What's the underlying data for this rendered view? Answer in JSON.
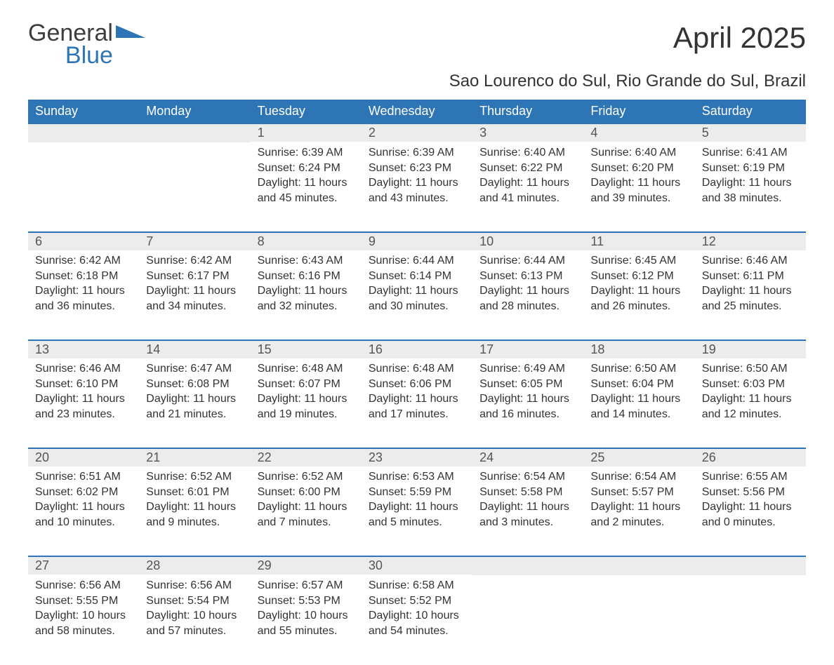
{
  "logo": {
    "general": "General",
    "blue": "Blue",
    "shape_color": "#2e75b6"
  },
  "title": "April 2025",
  "subtitle": "Sao Lourenco do Sul, Rio Grande do Sul, Brazil",
  "colors": {
    "header_bg": "#2e75b6",
    "header_text": "#ffffff",
    "daynum_bg": "#ececec",
    "border_top": "#2e75b6",
    "text": "#333333"
  },
  "typography": {
    "title_fontsize": 42,
    "subtitle_fontsize": 24,
    "header_fontsize": 18,
    "daynum_fontsize": 18,
    "body_fontsize": 16
  },
  "day_headers": [
    "Sunday",
    "Monday",
    "Tuesday",
    "Wednesday",
    "Thursday",
    "Friday",
    "Saturday"
  ],
  "weeks": [
    [
      null,
      null,
      {
        "n": "1",
        "sunrise": "Sunrise: 6:39 AM",
        "sunset": "Sunset: 6:24 PM",
        "daylight": "Daylight: 11 hours and 45 minutes."
      },
      {
        "n": "2",
        "sunrise": "Sunrise: 6:39 AM",
        "sunset": "Sunset: 6:23 PM",
        "daylight": "Daylight: 11 hours and 43 minutes."
      },
      {
        "n": "3",
        "sunrise": "Sunrise: 6:40 AM",
        "sunset": "Sunset: 6:22 PM",
        "daylight": "Daylight: 11 hours and 41 minutes."
      },
      {
        "n": "4",
        "sunrise": "Sunrise: 6:40 AM",
        "sunset": "Sunset: 6:20 PM",
        "daylight": "Daylight: 11 hours and 39 minutes."
      },
      {
        "n": "5",
        "sunrise": "Sunrise: 6:41 AM",
        "sunset": "Sunset: 6:19 PM",
        "daylight": "Daylight: 11 hours and 38 minutes."
      }
    ],
    [
      {
        "n": "6",
        "sunrise": "Sunrise: 6:42 AM",
        "sunset": "Sunset: 6:18 PM",
        "daylight": "Daylight: 11 hours and 36 minutes."
      },
      {
        "n": "7",
        "sunrise": "Sunrise: 6:42 AM",
        "sunset": "Sunset: 6:17 PM",
        "daylight": "Daylight: 11 hours and 34 minutes."
      },
      {
        "n": "8",
        "sunrise": "Sunrise: 6:43 AM",
        "sunset": "Sunset: 6:16 PM",
        "daylight": "Daylight: 11 hours and 32 minutes."
      },
      {
        "n": "9",
        "sunrise": "Sunrise: 6:44 AM",
        "sunset": "Sunset: 6:14 PM",
        "daylight": "Daylight: 11 hours and 30 minutes."
      },
      {
        "n": "10",
        "sunrise": "Sunrise: 6:44 AM",
        "sunset": "Sunset: 6:13 PM",
        "daylight": "Daylight: 11 hours and 28 minutes."
      },
      {
        "n": "11",
        "sunrise": "Sunrise: 6:45 AM",
        "sunset": "Sunset: 6:12 PM",
        "daylight": "Daylight: 11 hours and 26 minutes."
      },
      {
        "n": "12",
        "sunrise": "Sunrise: 6:46 AM",
        "sunset": "Sunset: 6:11 PM",
        "daylight": "Daylight: 11 hours and 25 minutes."
      }
    ],
    [
      {
        "n": "13",
        "sunrise": "Sunrise: 6:46 AM",
        "sunset": "Sunset: 6:10 PM",
        "daylight": "Daylight: 11 hours and 23 minutes."
      },
      {
        "n": "14",
        "sunrise": "Sunrise: 6:47 AM",
        "sunset": "Sunset: 6:08 PM",
        "daylight": "Daylight: 11 hours and 21 minutes."
      },
      {
        "n": "15",
        "sunrise": "Sunrise: 6:48 AM",
        "sunset": "Sunset: 6:07 PM",
        "daylight": "Daylight: 11 hours and 19 minutes."
      },
      {
        "n": "16",
        "sunrise": "Sunrise: 6:48 AM",
        "sunset": "Sunset: 6:06 PM",
        "daylight": "Daylight: 11 hours and 17 minutes."
      },
      {
        "n": "17",
        "sunrise": "Sunrise: 6:49 AM",
        "sunset": "Sunset: 6:05 PM",
        "daylight": "Daylight: 11 hours and 16 minutes."
      },
      {
        "n": "18",
        "sunrise": "Sunrise: 6:50 AM",
        "sunset": "Sunset: 6:04 PM",
        "daylight": "Daylight: 11 hours and 14 minutes."
      },
      {
        "n": "19",
        "sunrise": "Sunrise: 6:50 AM",
        "sunset": "Sunset: 6:03 PM",
        "daylight": "Daylight: 11 hours and 12 minutes."
      }
    ],
    [
      {
        "n": "20",
        "sunrise": "Sunrise: 6:51 AM",
        "sunset": "Sunset: 6:02 PM",
        "daylight": "Daylight: 11 hours and 10 minutes."
      },
      {
        "n": "21",
        "sunrise": "Sunrise: 6:52 AM",
        "sunset": "Sunset: 6:01 PM",
        "daylight": "Daylight: 11 hours and 9 minutes."
      },
      {
        "n": "22",
        "sunrise": "Sunrise: 6:52 AM",
        "sunset": "Sunset: 6:00 PM",
        "daylight": "Daylight: 11 hours and 7 minutes."
      },
      {
        "n": "23",
        "sunrise": "Sunrise: 6:53 AM",
        "sunset": "Sunset: 5:59 PM",
        "daylight": "Daylight: 11 hours and 5 minutes."
      },
      {
        "n": "24",
        "sunrise": "Sunrise: 6:54 AM",
        "sunset": "Sunset: 5:58 PM",
        "daylight": "Daylight: 11 hours and 3 minutes."
      },
      {
        "n": "25",
        "sunrise": "Sunrise: 6:54 AM",
        "sunset": "Sunset: 5:57 PM",
        "daylight": "Daylight: 11 hours and 2 minutes."
      },
      {
        "n": "26",
        "sunrise": "Sunrise: 6:55 AM",
        "sunset": "Sunset: 5:56 PM",
        "daylight": "Daylight: 11 hours and 0 minutes."
      }
    ],
    [
      {
        "n": "27",
        "sunrise": "Sunrise: 6:56 AM",
        "sunset": "Sunset: 5:55 PM",
        "daylight": "Daylight: 10 hours and 58 minutes."
      },
      {
        "n": "28",
        "sunrise": "Sunrise: 6:56 AM",
        "sunset": "Sunset: 5:54 PM",
        "daylight": "Daylight: 10 hours and 57 minutes."
      },
      {
        "n": "29",
        "sunrise": "Sunrise: 6:57 AM",
        "sunset": "Sunset: 5:53 PM",
        "daylight": "Daylight: 10 hours and 55 minutes."
      },
      {
        "n": "30",
        "sunrise": "Sunrise: 6:58 AM",
        "sunset": "Sunset: 5:52 PM",
        "daylight": "Daylight: 10 hours and 54 minutes."
      },
      null,
      null,
      null
    ]
  ]
}
